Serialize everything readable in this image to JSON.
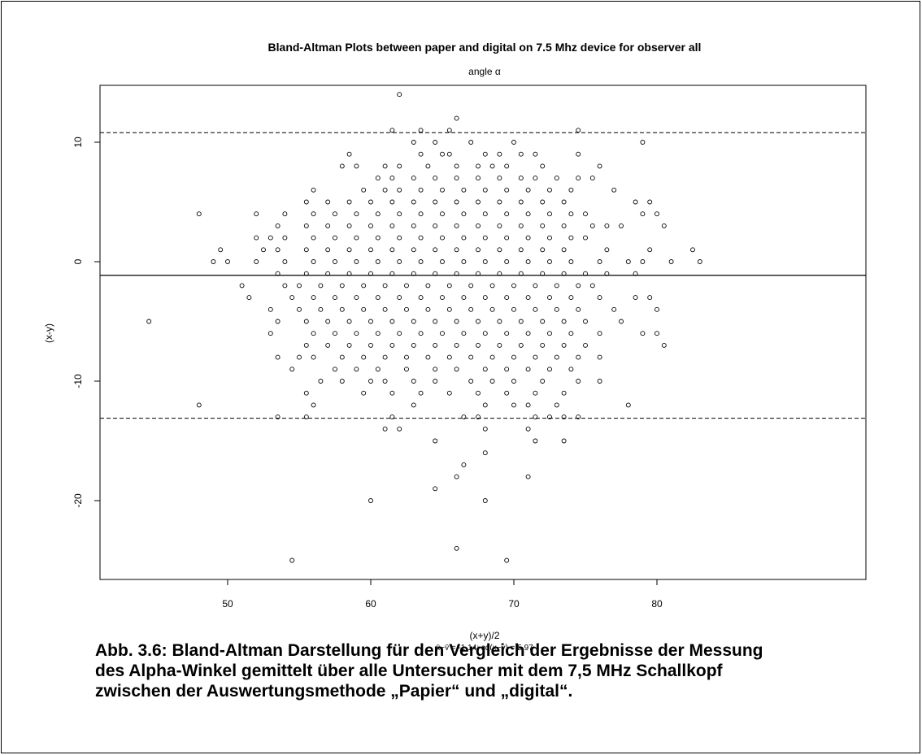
{
  "chart_data": {
    "type": "scatter",
    "title": "Bland-Altman Plots between paper and digital on  7.5 Mhz device for observer all",
    "subtitle": "angle α",
    "xlabel": "(x+y)/2",
    "ylabel": "(x-y)",
    "stats_label": "x̄−ȳ = -1.14; sd(x−y) = 5.97",
    "xlim": [
      43,
      85
    ],
    "ylim": [
      -26,
      15.5
    ],
    "x_ticks": [
      50,
      60,
      70,
      80
    ],
    "y_ticks": [
      10,
      0,
      -10,
      -20
    ],
    "mean_diff": -1.14,
    "upper_loa": 10.8,
    "lower_loa": -13.1,
    "grid": false,
    "rows": [
      {
        "y": 14,
        "x": [
          62
        ]
      },
      {
        "y": 12,
        "x": [
          66
        ]
      },
      {
        "y": 11,
        "x": [
          61.5,
          63.5,
          65.5,
          74.5
        ]
      },
      {
        "y": 10,
        "x": [
          63,
          64.5,
          67,
          70,
          79
        ]
      },
      {
        "y": 9,
        "x": [
          58.5,
          63.5,
          65,
          65.5,
          68,
          69,
          70.5,
          71.5,
          74.5
        ]
      },
      {
        "y": 8,
        "x": [
          58,
          59,
          61,
          62,
          64,
          66,
          67.5,
          68.5,
          69.5,
          72,
          76
        ]
      },
      {
        "y": 7,
        "x": [
          60.5,
          61.5,
          63,
          64.5,
          66,
          67.5,
          69,
          70.5,
          71.5,
          73,
          74.5,
          75.5
        ]
      },
      {
        "y": 6,
        "x": [
          56,
          59.5,
          61,
          62,
          63.5,
          65,
          66.5,
          68,
          69.5,
          71,
          72.5,
          74,
          77
        ]
      },
      {
        "y": 5,
        "x": [
          55.5,
          57,
          58.5,
          60,
          61.5,
          63,
          64.5,
          66,
          67.5,
          69,
          70.5,
          72,
          73.5,
          78.5,
          79.5
        ]
      },
      {
        "y": 4,
        "x": [
          48,
          52,
          54,
          56,
          57.5,
          59,
          60.5,
          62,
          63.5,
          65,
          66.5,
          68,
          69.5,
          71,
          72.5,
          74,
          75,
          79,
          80
        ]
      },
      {
        "y": 3,
        "x": [
          53.5,
          55.5,
          57,
          58.5,
          60,
          61.5,
          63,
          64.5,
          66,
          67.5,
          69,
          70.5,
          72,
          73.5,
          75.5,
          76.5,
          77.5,
          80.5
        ]
      },
      {
        "y": 2,
        "x": [
          52,
          53,
          54,
          56,
          57.5,
          59,
          60.5,
          62,
          63.5,
          65,
          66.5,
          68,
          69.5,
          71,
          72.5,
          74,
          75
        ]
      },
      {
        "y": 1,
        "x": [
          49.5,
          52.5,
          53.5,
          55.5,
          57,
          58.5,
          60,
          61.5,
          63,
          64.5,
          66,
          67.5,
          69,
          70.5,
          72,
          73.5,
          76.5,
          79.5,
          82.5
        ]
      },
      {
        "y": 0,
        "x": [
          49,
          50,
          52,
          54,
          56,
          57.5,
          59,
          60.5,
          62,
          63.5,
          65,
          66.5,
          68,
          69.5,
          71,
          72.5,
          74,
          76,
          78,
          79,
          81,
          83
        ]
      },
      {
        "y": -1,
        "x": [
          53.5,
          55.5,
          57,
          58.5,
          60,
          61.5,
          63,
          64.5,
          66,
          67.5,
          69,
          70.5,
          72,
          73.5,
          75,
          76.5,
          78.5
        ]
      },
      {
        "y": -2,
        "x": [
          51,
          54,
          55,
          56.5,
          58,
          59.5,
          61,
          62.5,
          64,
          65.5,
          67,
          68.5,
          70,
          71.5,
          73,
          74.5,
          75.5
        ]
      },
      {
        "y": -3,
        "x": [
          51.5,
          54.5,
          56,
          57.5,
          59,
          60.5,
          62,
          63.5,
          65,
          66.5,
          68,
          69.5,
          71,
          72.5,
          74,
          76,
          78.5,
          79.5
        ]
      },
      {
        "y": -4,
        "x": [
          53,
          55,
          56.5,
          58,
          59.5,
          61,
          62.5,
          64,
          65.5,
          67,
          68.5,
          70,
          71.5,
          73,
          74.5,
          77,
          80
        ]
      },
      {
        "y": -5,
        "x": [
          44.5,
          53.5,
          55.5,
          57,
          58.5,
          60,
          61.5,
          63,
          64.5,
          66,
          67.5,
          69,
          70.5,
          72,
          73.5,
          75,
          77.5
        ]
      },
      {
        "y": -6,
        "x": [
          53,
          56,
          57.5,
          59,
          60.5,
          62,
          63.5,
          65,
          66.5,
          68,
          69.5,
          71,
          72.5,
          74,
          76,
          79,
          80
        ]
      },
      {
        "y": -7,
        "x": [
          55.5,
          57,
          58.5,
          60,
          61.5,
          63,
          64.5,
          66,
          67.5,
          69,
          70.5,
          72,
          73.5,
          75,
          80.5
        ]
      },
      {
        "y": -8,
        "x": [
          53.5,
          55,
          56,
          58,
          59.5,
          61,
          62.5,
          64,
          65.5,
          67,
          68.5,
          70,
          71.5,
          73,
          74.5,
          76
        ]
      },
      {
        "y": -9,
        "x": [
          54.5,
          57.5,
          59,
          60.5,
          62.5,
          64.5,
          66,
          68,
          69.5,
          71,
          72.5,
          74
        ]
      },
      {
        "y": -10,
        "x": [
          56.5,
          58,
          60,
          61,
          63,
          64.5,
          67,
          68.5,
          70,
          72,
          74.5,
          76
        ]
      },
      {
        "y": -11,
        "x": [
          55.5,
          59.5,
          61.5,
          63.5,
          65.5,
          67.5,
          69.5,
          71.5,
          73.5
        ]
      },
      {
        "y": -12,
        "x": [
          48,
          56,
          63,
          68,
          70,
          71,
          73,
          78
        ]
      },
      {
        "y": -13,
        "x": [
          53.5,
          55.5,
          61.5,
          66.5,
          67.5,
          71.5,
          72.5,
          73.5,
          74.5
        ]
      },
      {
        "y": -14,
        "x": [
          61,
          62,
          68,
          71
        ]
      },
      {
        "y": -15,
        "x": [
          64.5,
          71.5,
          73.5
        ]
      },
      {
        "y": -16,
        "x": [
          68
        ]
      },
      {
        "y": -17,
        "x": [
          66.5
        ]
      },
      {
        "y": -18,
        "x": [
          66,
          71
        ]
      },
      {
        "y": -19,
        "x": [
          64.5
        ]
      },
      {
        "y": -20,
        "x": [
          60,
          68
        ]
      },
      {
        "y": -24,
        "x": [
          66
        ]
      },
      {
        "y": -25,
        "x": [
          54.5,
          69.5
        ]
      }
    ]
  },
  "caption": {
    "line1": "Abb. 3.6: Bland-Altman Darstellung für den Vergleich der Ergebnisse der Messung",
    "line2": "des Alpha-Winkel gemittelt über alle Untersucher mit dem 7,5 MHz Schallkopf",
    "line3": "zwischen der Auswertungsmethode „Papier“ und „digital“."
  }
}
